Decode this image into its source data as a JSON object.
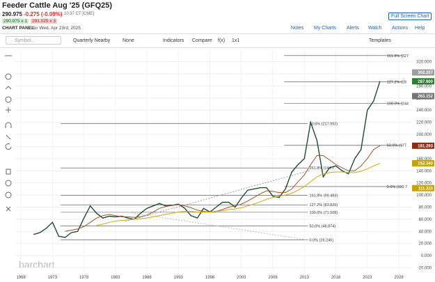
{
  "header": {
    "title": "Feeder Cattle Aug '25 (GFQ25)",
    "last": "290.975",
    "change": "-0.275 (-0.09%)",
    "time": "10:37 CT [CME]",
    "bid": "290.975 x 1",
    "ask": "291.025 x 3",
    "panel_label": "CHART PANEL",
    "panel_date": "for Wed, Apr 23rd, 2025",
    "fullscreen": "Full Screen Chart",
    "links": [
      "Notes",
      "My Charts",
      "Alerts",
      "Watch",
      "Actions",
      "Help"
    ]
  },
  "toolbar": {
    "symbol_placeholder": "Symbol...",
    "items": [
      "Quarterly Nearby",
      "None",
      "Indicators",
      "Compare",
      "f(x)",
      "1x1"
    ],
    "templates": "Templates"
  },
  "watermark": "barchart",
  "chart_data": {
    "type": "line",
    "x": [
      1970,
      1971,
      1972,
      1973,
      1974,
      1975,
      1976,
      1977,
      1978,
      1979,
      1980,
      1981,
      1982,
      1983,
      1984,
      1985,
      1986,
      1987,
      1988,
      1989,
      1990,
      1991,
      1992,
      1993,
      1994,
      1995,
      1996,
      1997,
      1998,
      1999,
      2000,
      2001,
      2002,
      2003,
      2004,
      2005,
      2006,
      2007,
      2008,
      2009,
      2010,
      2011,
      2012,
      2013,
      2014,
      2015,
      2016,
      2017,
      2018,
      2019,
      2020,
      2021,
      2022,
      2023,
      2024,
      2025
    ],
    "series": [
      {
        "color": "#1b4d2a",
        "values": [
          35,
          38,
          45,
          55,
          32,
          30,
          38,
          40,
          62,
          82,
          70,
          62,
          65,
          64,
          65,
          62,
          60,
          70,
          78,
          82,
          86,
          82,
          83,
          85,
          78,
          66,
          62,
          78,
          72,
          80,
          88,
          88,
          80,
          95,
          108,
          110,
          112,
          112,
          98,
          96,
          110,
          138,
          150,
          160,
          220,
          190,
          130,
          145,
          148,
          140,
          135,
          160,
          175,
          240,
          255,
          287.6
        ]
      },
      {
        "color": "#a0522d",
        "values": [
          null,
          null,
          null,
          null,
          null,
          40,
          42,
          44,
          48,
          55,
          62,
          66,
          68,
          66,
          64,
          64,
          63,
          64,
          67,
          72,
          78,
          81,
          83,
          84,
          82,
          79,
          75,
          73,
          72,
          73,
          76,
          80,
          82,
          85,
          90,
          96,
          102,
          107,
          106,
          104,
          104,
          110,
          122,
          133,
          150,
          165,
          165,
          158,
          150,
          145,
          140,
          140,
          148,
          160,
          175,
          181.3
        ]
      },
      {
        "color": "#d4a80c",
        "values": [
          null,
          null,
          null,
          null,
          null,
          null,
          null,
          null,
          null,
          null,
          50,
          52,
          55,
          57,
          58,
          59,
          60,
          61,
          62,
          64,
          66,
          68,
          70,
          72,
          73,
          73,
          72,
          72,
          72,
          73,
          74,
          76,
          77,
          79,
          82,
          85,
          89,
          93,
          96,
          98,
          100,
          103,
          108,
          114,
          122,
          130,
          135,
          137,
          138,
          138,
          137,
          137,
          139,
          143,
          148,
          152.3
        ]
      }
    ],
    "ylim": [
      -32,
      339
    ],
    "xlim": [
      1967.1,
      2030.1
    ],
    "yticks": [
      {
        "value": -20,
        "label": "-20.000"
      },
      {
        "value": 0,
        "label": "0.000"
      },
      {
        "value": 20,
        "label": "20.000"
      },
      {
        "value": 40,
        "label": "40.000"
      },
      {
        "value": 60,
        "label": "60.000"
      },
      {
        "value": 80,
        "label": "80.000"
      },
      {
        "value": 100,
        "label": "100.000"
      },
      {
        "value": 120,
        "label": "120.000"
      },
      {
        "value": 140,
        "label": "140.000"
      },
      {
        "value": 160,
        "label": "160.000"
      },
      {
        "value": 180,
        "label": "180.000"
      },
      {
        "value": 200,
        "label": "200.000"
      },
      {
        "value": 220,
        "label": "220.000"
      },
      {
        "value": 240,
        "label": "240.000"
      },
      {
        "value": 260,
        "label": "260.000"
      },
      {
        "value": 280,
        "label": "280.000"
      },
      {
        "value": 300,
        "label": "300.000"
      },
      {
        "value": 320,
        "label": "320.000"
      }
    ],
    "xticks": [
      1968,
      1973,
      1978,
      1983,
      1988,
      1993,
      1998,
      2003,
      2008,
      2013,
      2018,
      2023,
      2028
    ],
    "grid": true,
    "fib_upper": [
      {
        "value": 330,
        "label": "161.8% (327"
      },
      {
        "value": 287,
        "label": "127.2% (28"
      },
      {
        "value": 251,
        "label": "100.0% (244"
      },
      {
        "value": 182,
        "label": "50.0% (177"
      },
      {
        "value": 114,
        "label": "0.0% (110.7"
      }
    ],
    "fib_lower": [
      {
        "value": 217.992,
        "label": "23.6% (217.992)"
      },
      {
        "value": 144.7,
        "label": "261.8% (144.7"
      },
      {
        "value": 99.483,
        "label": "161.8% (99.483)"
      },
      {
        "value": 83.82,
        "label": "127.2% (83.820)"
      },
      {
        "value": 71.508,
        "label": "100.0% (71.508)"
      },
      {
        "value": 48.874,
        "label": "50.0% (48.874)"
      },
      {
        "value": 26.24,
        "label": "0.0% (26.240)"
      }
    ],
    "price_tags": [
      {
        "value": 302.207,
        "label": "302.207",
        "color": "#9e9e9e"
      },
      {
        "value": 287.6,
        "label": "287.600",
        "color": "#2e7d32"
      },
      {
        "value": 263.152,
        "label": "263.152",
        "color": "#757575"
      },
      {
        "value": 181.293,
        "label": "181.293",
        "color": "#8b2e16"
      },
      {
        "value": 152.34,
        "label": "152.340",
        "color": "#c9a20a"
      },
      {
        "value": 111.323,
        "label": "111.323",
        "color": "#c9a20a"
      }
    ]
  }
}
